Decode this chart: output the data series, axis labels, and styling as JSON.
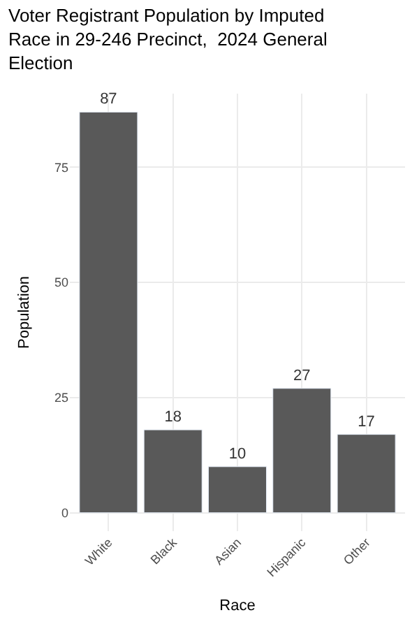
{
  "chart_data": {
    "type": "bar",
    "title": "Voter Registrant Population by Imputed Race in 29-246 Precinct,  2024 General Election",
    "xlabel": "Race",
    "ylabel": "Population",
    "categories": [
      "White",
      "Black",
      "Asian",
      "Hispanic",
      "Other"
    ],
    "values": [
      87,
      18,
      10,
      27,
      17
    ],
    "color": "#595959",
    "data_labels": true,
    "ylim": [
      -4,
      91
    ],
    "yticks": [
      0,
      25,
      50,
      75
    ],
    "grid": true
  }
}
